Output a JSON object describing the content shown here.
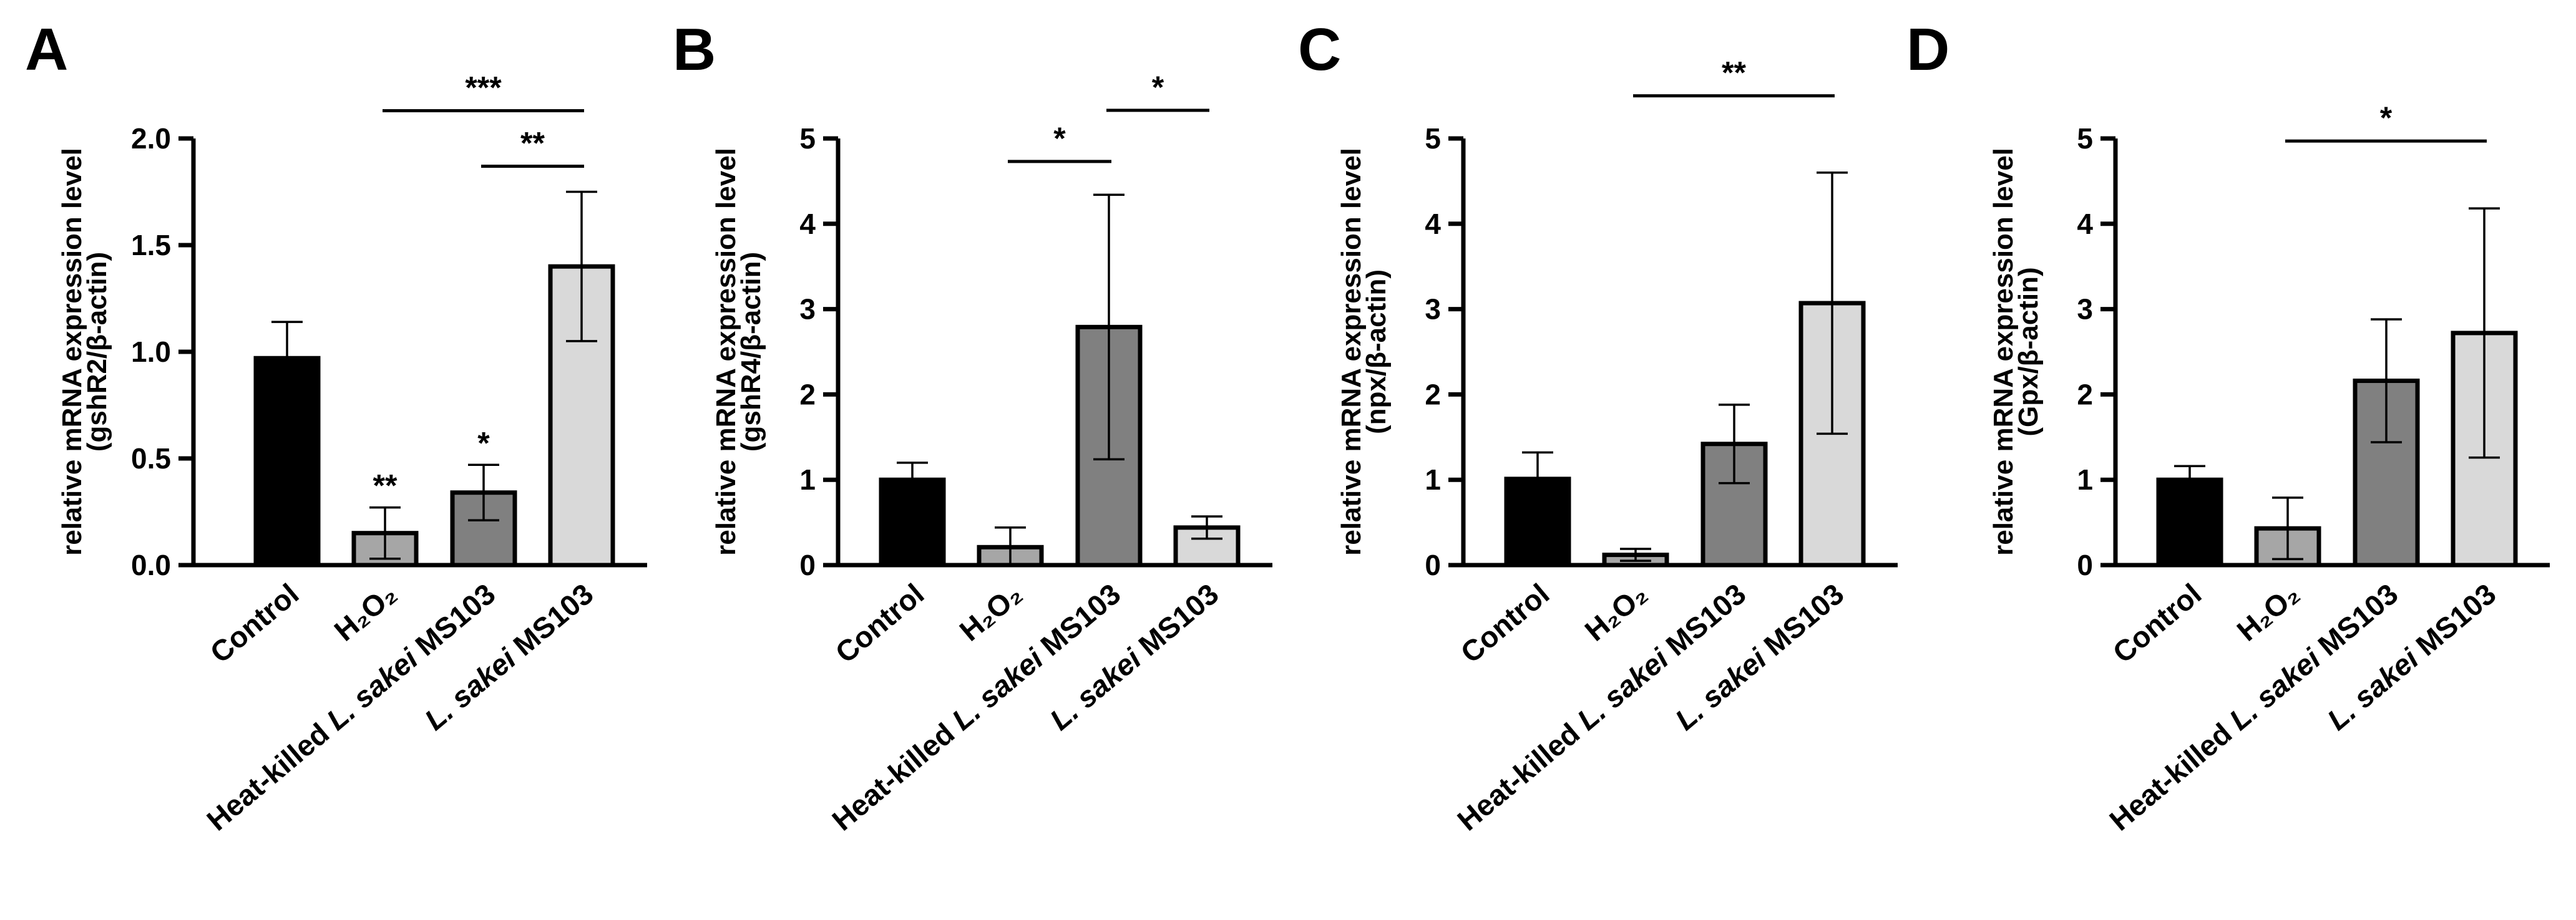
{
  "figure": {
    "title": ""
  },
  "chart_data": [
    {
      "panel": "A",
      "type": "bar",
      "ylabel_line1": "relative mRNA expression level",
      "ylabel_line2": "(gshR2/β-actin)",
      "ylim": [
        0,
        2.0
      ],
      "yticks": [
        "0.0",
        "0.5",
        "1.0",
        "1.5",
        "2.0"
      ],
      "categories": [
        {
          "pre": "Control",
          "ital": "",
          "post": ""
        },
        {
          "pre": "H₂O₂",
          "ital": "",
          "post": ""
        },
        {
          "pre": "Heat-killed ",
          "ital": "L. sakei",
          "post": " MS103"
        },
        {
          "pre": "",
          "ital": "L. sakei",
          "post": " MS103"
        }
      ],
      "values": [
        0.97,
        0.15,
        0.34,
        1.4
      ],
      "errors": [
        0.17,
        0.12,
        0.13,
        0.35
      ],
      "colors": [
        "#000000",
        "#a6a6a6",
        "#808080",
        "#d9d9d9"
      ],
      "bar_stars": [
        "",
        "**",
        "*",
        ""
      ],
      "comparisons": [
        {
          "from": 1,
          "to": 3,
          "label": "***",
          "y": 2.13
        },
        {
          "from": 2,
          "to": 3,
          "label": "**",
          "y": 1.87
        }
      ]
    },
    {
      "panel": "B",
      "type": "bar",
      "ylabel_line1": "relative mRNA expression level",
      "ylabel_line2": "(gshR4/β-actin)",
      "ylim": [
        0,
        5
      ],
      "yticks": [
        "0",
        "1",
        "2",
        "3",
        "4",
        "5"
      ],
      "categories": [
        {
          "pre": "Control",
          "ital": "",
          "post": ""
        },
        {
          "pre": "H₂O₂",
          "ital": "",
          "post": ""
        },
        {
          "pre": "Heat-killed ",
          "ital": "L. sakei",
          "post": " MS103"
        },
        {
          "pre": "",
          "ital": "L. sakei",
          "post": " MS103"
        }
      ],
      "values": [
        1.0,
        0.21,
        2.79,
        0.44
      ],
      "errors": [
        0.2,
        0.23,
        1.55,
        0.13
      ],
      "colors": [
        "#000000",
        "#a6a6a6",
        "#808080",
        "#d9d9d9"
      ],
      "bar_stars": [
        "",
        "",
        "",
        ""
      ],
      "comparisons": [
        {
          "from": 1,
          "to": 2,
          "label": "*",
          "y": 4.73
        },
        {
          "from": 2,
          "to": 3,
          "label": "*",
          "y": 5.33
        }
      ]
    },
    {
      "panel": "C",
      "type": "bar",
      "ylabel_line1": "relative mRNA expression level",
      "ylabel_line2": "(npx/β-actin)",
      "ylim": [
        0,
        5
      ],
      "yticks": [
        "0",
        "1",
        "2",
        "3",
        "4",
        "5"
      ],
      "categories": [
        {
          "pre": "Control",
          "ital": "",
          "post": ""
        },
        {
          "pre": "H₂O₂",
          "ital": "",
          "post": ""
        },
        {
          "pre": "Heat-killed ",
          "ital": "L. sakei",
          "post": " MS103"
        },
        {
          "pre": "",
          "ital": "L. sakei",
          "post": " MS103"
        }
      ],
      "values": [
        1.01,
        0.12,
        1.42,
        3.07
      ],
      "errors": [
        0.31,
        0.07,
        0.46,
        1.53
      ],
      "colors": [
        "#000000",
        "#a6a6a6",
        "#808080",
        "#d9d9d9"
      ],
      "bar_stars": [
        "",
        "",
        "",
        ""
      ],
      "comparisons": [
        {
          "from": 1,
          "to": 3,
          "label": "**",
          "y": 5.5
        }
      ]
    },
    {
      "panel": "D",
      "type": "bar",
      "ylabel_line1": "relative mRNA expression level",
      "ylabel_line2": "(Gpx/β-actin)",
      "ylim": [
        0,
        5
      ],
      "yticks": [
        "0",
        "1",
        "2",
        "3",
        "4",
        "5"
      ],
      "categories": [
        {
          "pre": "Control",
          "ital": "",
          "post": ""
        },
        {
          "pre": "H₂O₂",
          "ital": "",
          "post": ""
        },
        {
          "pre": "Heat-killed ",
          "ital": "L. sakei",
          "post": " MS103"
        },
        {
          "pre": "",
          "ital": "L. sakei",
          "post": " MS103"
        }
      ],
      "values": [
        1.0,
        0.43,
        2.16,
        2.72
      ],
      "errors": [
        0.16,
        0.36,
        0.72,
        1.46
      ],
      "colors": [
        "#000000",
        "#a6a6a6",
        "#808080",
        "#d9d9d9"
      ],
      "bar_stars": [
        "",
        "",
        "",
        ""
      ],
      "comparisons": [
        {
          "from": 1,
          "to": 3,
          "label": "*",
          "y": 4.97
        }
      ]
    }
  ]
}
